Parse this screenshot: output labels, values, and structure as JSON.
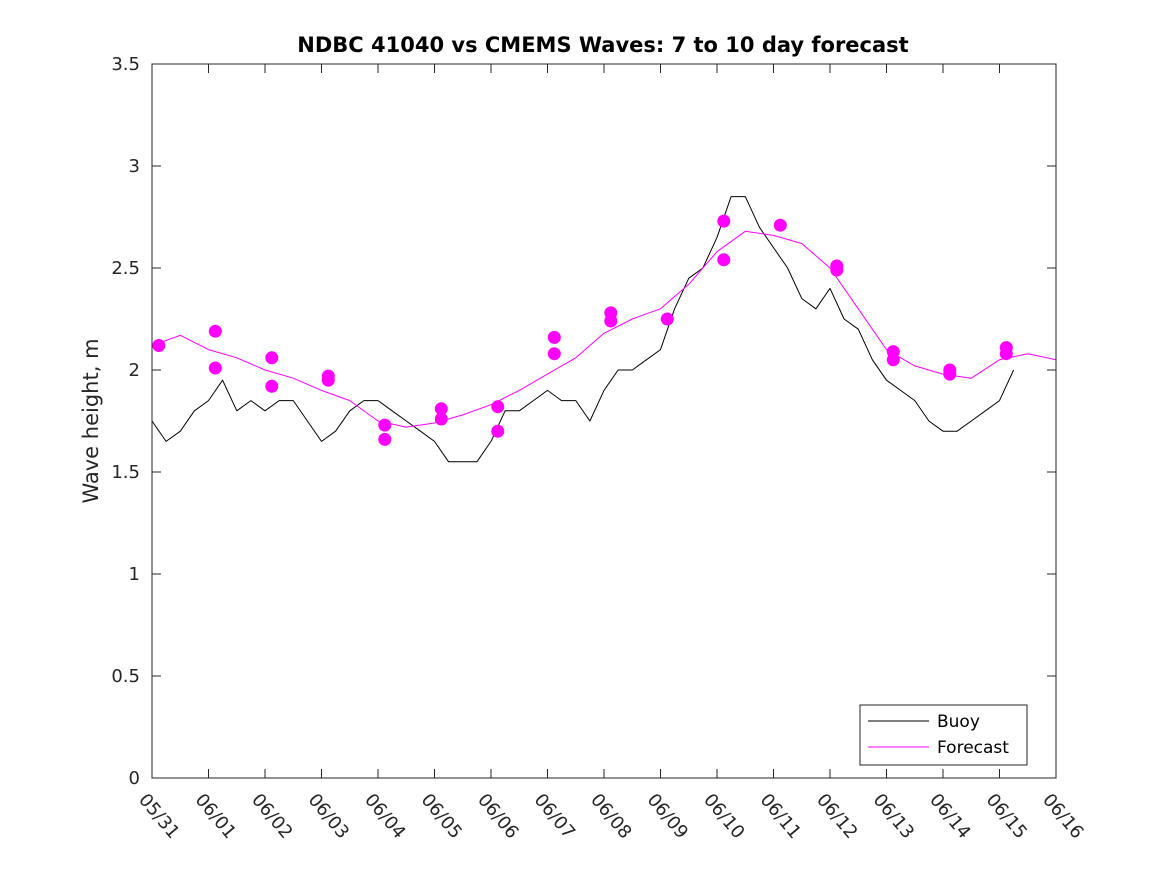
{
  "chart_data": {
    "type": "line",
    "title": "NDBC 41040 vs CMEMS Waves: 7 to 10 day forecast",
    "xlabel": "",
    "ylabel": "Wave height, m",
    "x_tick_labels": [
      "05/31",
      "06/01",
      "06/02",
      "06/03",
      "06/04",
      "06/05",
      "06/06",
      "06/07",
      "06/08",
      "06/09",
      "06/10",
      "06/11",
      "06/12",
      "06/13",
      "06/14",
      "06/15",
      "06/16"
    ],
    "xlim": [
      0,
      16
    ],
    "ylim": [
      0,
      3.5
    ],
    "y_ticks": [
      "0",
      "0.5",
      "1",
      "1.5",
      "2",
      "2.5",
      "3",
      "3.5"
    ],
    "legend_position": "bottom-right",
    "colors": {
      "buoy": "#000000",
      "forecast": "#ff00ff"
    },
    "series": [
      {
        "name": "Buoy",
        "color": "#000000",
        "x": [
          0,
          0.25,
          0.5,
          0.75,
          1,
          1.25,
          1.5,
          1.75,
          2,
          2.25,
          2.5,
          2.75,
          3,
          3.25,
          3.5,
          3.75,
          4,
          4.25,
          4.5,
          4.75,
          5,
          5.25,
          5.5,
          5.75,
          6,
          6.25,
          6.5,
          6.75,
          7,
          7.25,
          7.5,
          7.75,
          8,
          8.25,
          8.5,
          8.75,
          9,
          9.25,
          9.5,
          9.75,
          10,
          10.25,
          10.5,
          10.75,
          11,
          11.25,
          11.5,
          11.75,
          12,
          12.25,
          12.5,
          12.75,
          13,
          13.25,
          13.5,
          13.75,
          14,
          14.25,
          14.5,
          14.75,
          15,
          15.25
        ],
        "y": [
          1.75,
          1.65,
          1.7,
          1.8,
          1.85,
          1.95,
          1.8,
          1.85,
          1.8,
          1.85,
          1.85,
          1.75,
          1.65,
          1.7,
          1.8,
          1.85,
          1.85,
          1.8,
          1.75,
          1.7,
          1.65,
          1.55,
          1.55,
          1.55,
          1.65,
          1.8,
          1.8,
          1.85,
          1.9,
          1.85,
          1.85,
          1.75,
          1.9,
          2.0,
          2.0,
          2.05,
          2.1,
          2.3,
          2.45,
          2.5,
          2.65,
          2.85,
          2.85,
          2.7,
          2.6,
          2.5,
          2.35,
          2.3,
          2.4,
          2.25,
          2.2,
          2.05,
          1.95,
          1.9,
          1.85,
          1.75,
          1.7,
          1.7,
          1.75,
          1.8,
          1.85,
          2.0
        ]
      },
      {
        "name": "Forecast",
        "color": "#ff00ff",
        "x": [
          0,
          0.5,
          1,
          1.5,
          2,
          2.5,
          3,
          3.5,
          4,
          4.5,
          5,
          5.5,
          6,
          6.5,
          7,
          7.5,
          8,
          8.5,
          9,
          9.5,
          10,
          10.5,
          11,
          11.5,
          12,
          12.5,
          13,
          13.5,
          14,
          14.5,
          15,
          15.5,
          16
        ],
        "y": [
          2.12,
          2.17,
          2.1,
          2.06,
          2.0,
          1.96,
          1.9,
          1.85,
          1.75,
          1.72,
          1.74,
          1.78,
          1.83,
          1.9,
          1.98,
          2.06,
          2.18,
          2.25,
          2.3,
          2.42,
          2.58,
          2.68,
          2.66,
          2.62,
          2.5,
          2.3,
          2.1,
          2.02,
          1.98,
          1.96,
          2.05,
          2.08,
          2.05
        ]
      }
    ],
    "forecast_start_markers": {
      "x": [
        0.12,
        1.12,
        1.12,
        2.12,
        2.12,
        3.12,
        3.12,
        4.12,
        4.12,
        5.12,
        5.12,
        6.12,
        6.12,
        7.12,
        7.12,
        8.12,
        8.12,
        9.12,
        10.12,
        10.12,
        11.12,
        12.12,
        12.12,
        13.12,
        13.12,
        14.12,
        14.12,
        15.12,
        15.12
      ],
      "y": [
        2.12,
        2.19,
        2.01,
        2.06,
        1.92,
        1.97,
        1.95,
        1.73,
        1.66,
        1.81,
        1.76,
        1.82,
        1.7,
        2.16,
        2.08,
        2.28,
        2.24,
        2.25,
        2.73,
        2.54,
        2.71,
        2.51,
        2.49,
        2.09,
        2.05,
        2.0,
        1.98,
        2.11,
        2.08
      ]
    }
  }
}
